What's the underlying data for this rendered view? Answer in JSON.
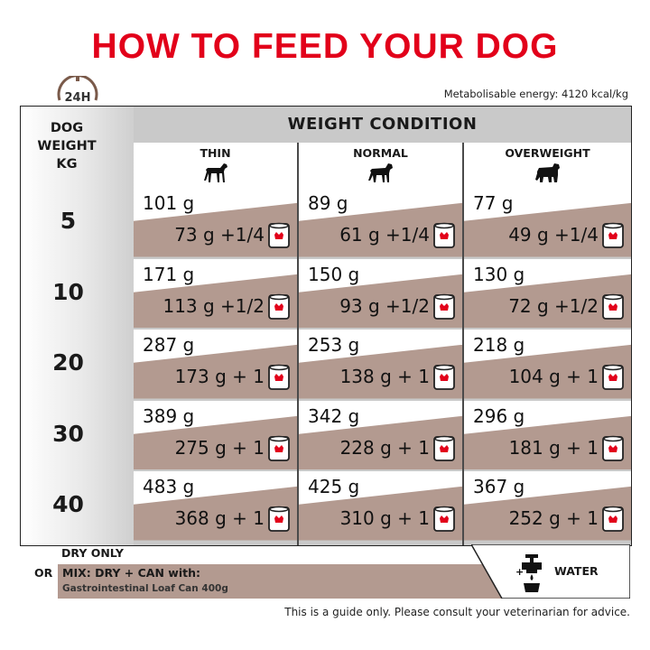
{
  "title": "HOW TO FEED YOUR DOG",
  "clock_label": "24H",
  "energy": "Metabolisable energy: 4120 kcal/kg",
  "header": {
    "dog_weight": [
      "DOG",
      "WEIGHT",
      "KG"
    ],
    "weight_condition": "WEIGHT CONDITION",
    "columns": [
      "THIN",
      "NORMAL",
      "OVERWEIGHT"
    ]
  },
  "rows": [
    {
      "weight": "5",
      "cells": [
        {
          "dry": "101 g",
          "mix": "73 g +1/4"
        },
        {
          "dry": "89 g",
          "mix": "61 g +1/4"
        },
        {
          "dry": "77 g",
          "mix": "49 g +1/4"
        }
      ]
    },
    {
      "weight": "10",
      "cells": [
        {
          "dry": "171 g",
          "mix": "113 g +1/2"
        },
        {
          "dry": "150 g",
          "mix": "93 g +1/2"
        },
        {
          "dry": "130 g",
          "mix": "72 g +1/2"
        }
      ]
    },
    {
      "weight": "20",
      "cells": [
        {
          "dry": "287 g",
          "mix": "173 g + 1"
        },
        {
          "dry": "253 g",
          "mix": "138 g + 1"
        },
        {
          "dry": "218 g",
          "mix": "104 g + 1"
        }
      ]
    },
    {
      "weight": "30",
      "cells": [
        {
          "dry": "389 g",
          "mix": "275 g + 1"
        },
        {
          "dry": "342 g",
          "mix": "228 g + 1"
        },
        {
          "dry": "296 g",
          "mix": "181 g + 1"
        }
      ]
    },
    {
      "weight": "40",
      "cells": [
        {
          "dry": "483 g",
          "mix": "368 g + 1"
        },
        {
          "dry": "425 g",
          "mix": "310 g + 1"
        },
        {
          "dry": "367 g",
          "mix": "252 g + 1"
        }
      ]
    }
  ],
  "legend": {
    "dry_only": "DRY ONLY",
    "or": "OR",
    "mix": "MIX: DRY + CAN with:",
    "can_name": "Gastrointestinal Loaf Can 400g",
    "water": "WATER"
  },
  "disclaimer": "This is a guide only. Please consult your veterinarian for advice.",
  "colors": {
    "title_red": "#e2001a",
    "mix_band": "#b39a90",
    "header_gray": "#c9c9c9",
    "border_dark": "#222222"
  },
  "icons": [
    "clock-icon",
    "dog-thin-icon",
    "dog-normal-icon",
    "dog-overweight-icon",
    "can-icon",
    "water-tap-icon"
  ]
}
